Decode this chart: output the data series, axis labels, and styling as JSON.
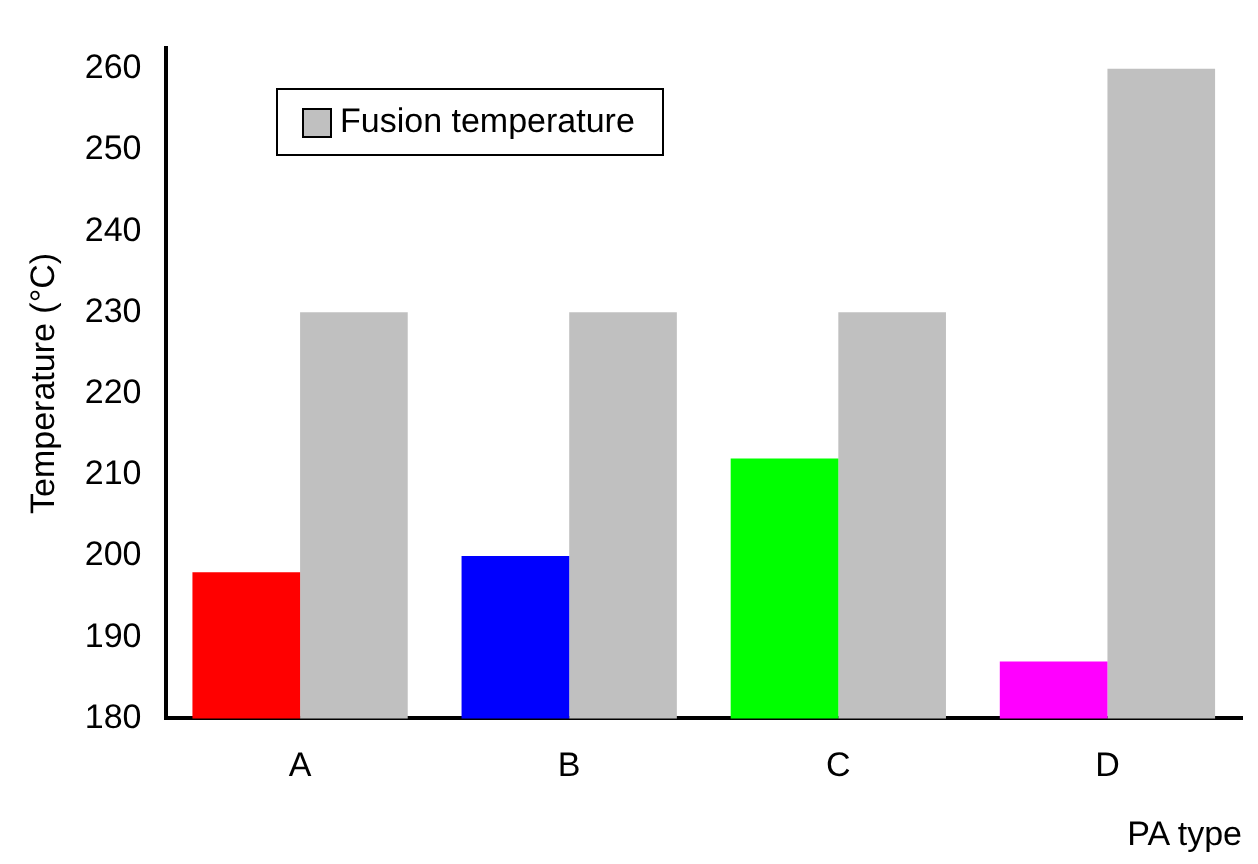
{
  "chart_data": {
    "type": "bar",
    "xlabel": "PA type",
    "ylabel": "Temperature (°C)",
    "categories": [
      "A",
      "B",
      "C",
      "D"
    ],
    "series": [
      {
        "colors": [
          "#ff0000",
          "#0000ff",
          "#00ff00",
          "#ff00ff"
        ],
        "values": [
          198,
          200,
          212,
          187
        ]
      },
      {
        "name": "Fusion temperature",
        "color": "#c0c0c0",
        "values": [
          230,
          230,
          230,
          260
        ]
      }
    ],
    "ylim": [
      180,
      262.5
    ],
    "yticks": [
      180,
      190,
      200,
      210,
      220,
      230,
      240,
      250,
      260
    ],
    "grid": false,
    "legend": "top left"
  }
}
